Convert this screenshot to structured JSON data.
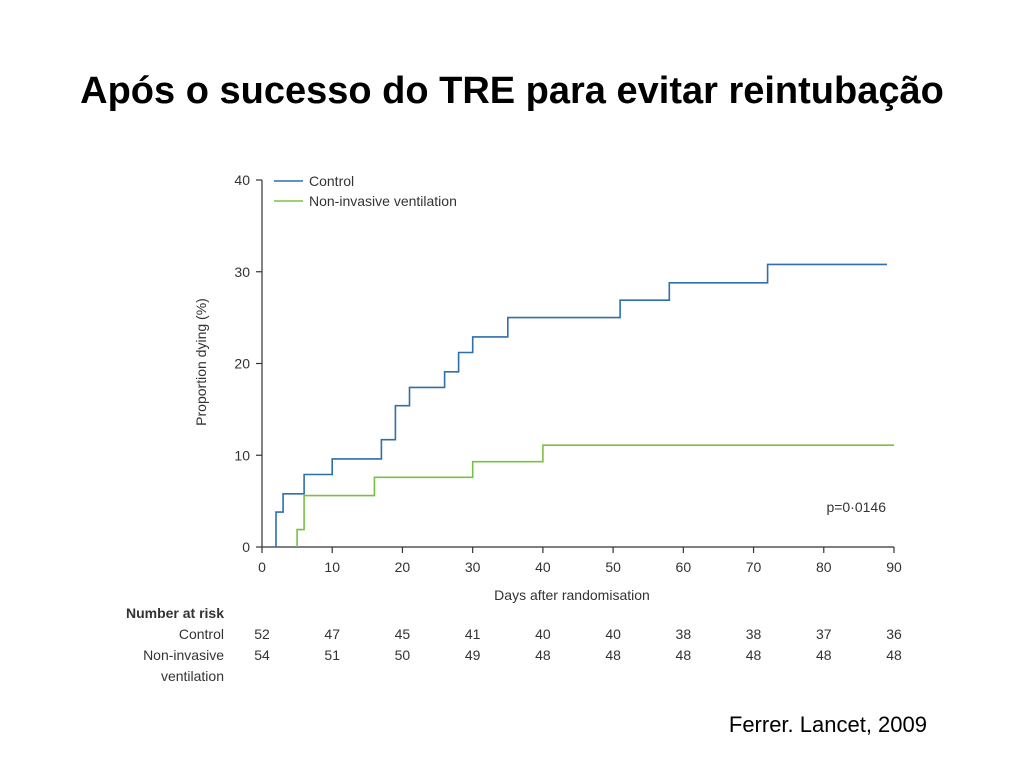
{
  "slide": {
    "title": "Após o sucesso do TRE para evitar reintubação",
    "citation": "Ferrer. Lancet, 2009"
  },
  "colors": {
    "control": "#2e6fac",
    "niv": "#7bc043",
    "axis": "#333333"
  },
  "chart_data": {
    "type": "line",
    "step": true,
    "title": "",
    "xlabel": "Days after randomisation",
    "ylabel": "Proportion dying (%)",
    "xlim": [
      0,
      90
    ],
    "ylim": [
      0,
      40
    ],
    "xticks": [
      0,
      10,
      20,
      30,
      40,
      50,
      60,
      70,
      80,
      90
    ],
    "yticks": [
      0,
      10,
      20,
      30,
      40
    ],
    "grid": false,
    "legend": "top-left",
    "annotation": "p=0·0146",
    "series": [
      {
        "name": "Control",
        "color": "#2e6fac",
        "x": [
          2,
          2,
          3,
          3,
          6,
          6,
          10,
          10,
          17,
          17,
          19,
          19,
          21,
          21,
          26,
          26,
          28,
          28,
          30,
          30,
          35,
          35,
          51,
          51,
          58,
          58,
          72,
          72,
          89
        ],
        "y": [
          0,
          3.8,
          3.8,
          5.8,
          5.8,
          7.9,
          7.9,
          9.6,
          9.6,
          11.7,
          11.7,
          15.4,
          15.4,
          17.4,
          17.4,
          19.1,
          19.1,
          21.2,
          21.2,
          22.9,
          22.9,
          25.0,
          25.0,
          26.9,
          26.9,
          28.8,
          28.8,
          30.8,
          30.8
        ]
      },
      {
        "name": "Non-invasive ventilation",
        "color": "#7bc043",
        "x": [
          5,
          5,
          6,
          6,
          16,
          16,
          30,
          30,
          40,
          40,
          90
        ],
        "y": [
          0,
          1.9,
          1.9,
          5.6,
          5.6,
          7.6,
          7.6,
          9.3,
          9.3,
          11.1,
          11.1
        ]
      }
    ],
    "risk_table": {
      "header": "Number at risk",
      "rows": [
        {
          "label": [
            "Control"
          ],
          "values": [
            52,
            47,
            45,
            41,
            40,
            40,
            38,
            38,
            37,
            36
          ]
        },
        {
          "label": [
            "Non-invasive",
            "ventilation"
          ],
          "values": [
            54,
            51,
            50,
            49,
            48,
            48,
            48,
            48,
            48,
            48
          ]
        }
      ]
    }
  }
}
